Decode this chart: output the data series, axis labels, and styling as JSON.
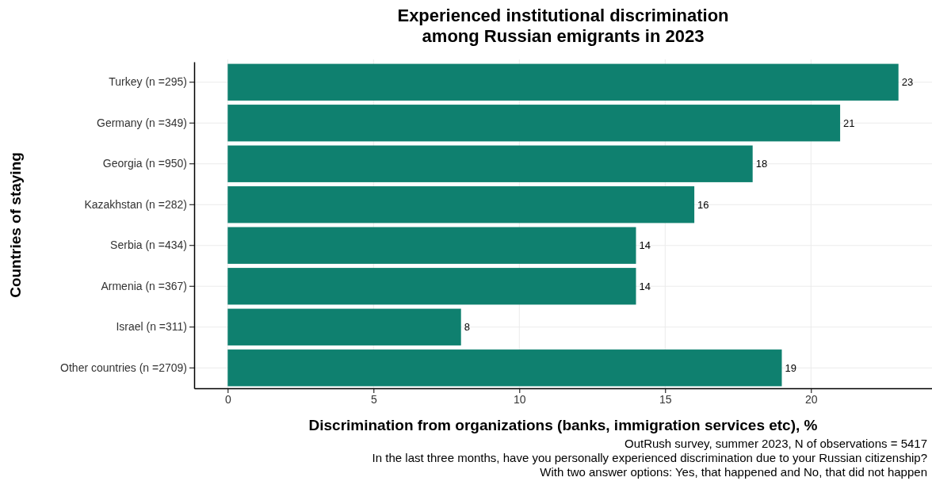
{
  "chart_data": {
    "type": "bar",
    "orientation": "horizontal",
    "title": "Experienced institutional discrimination\namong Russian emigrants in 2023",
    "xlabel": "Discrimination from organizations (banks, immigration services etc), %",
    "ylabel": "Countries of staying",
    "categories": [
      "Turkey (n =295)",
      "Germany (n =349)",
      "Georgia (n =950)",
      "Kazakhstan (n =282)",
      "Serbia (n =434)",
      "Armenia (n =367)",
      "Israel (n =311)",
      "Other countries (n =2709)"
    ],
    "values": [
      23,
      21,
      18,
      16,
      14,
      14,
      8,
      19
    ],
    "color": "#0f806f",
    "data_labels": true,
    "xlim": [
      -1.15,
      24.15
    ],
    "xticks": [
      0,
      5,
      10,
      15,
      20
    ],
    "grid": true,
    "annotations": [
      "OutRush survey, summer 2023, N of observations =  5417",
      "In the last three months, have you personally experienced discrimination due to your Russian citizenship?",
      "With two answer options: Yes, that happened and No, that did not happen"
    ]
  }
}
